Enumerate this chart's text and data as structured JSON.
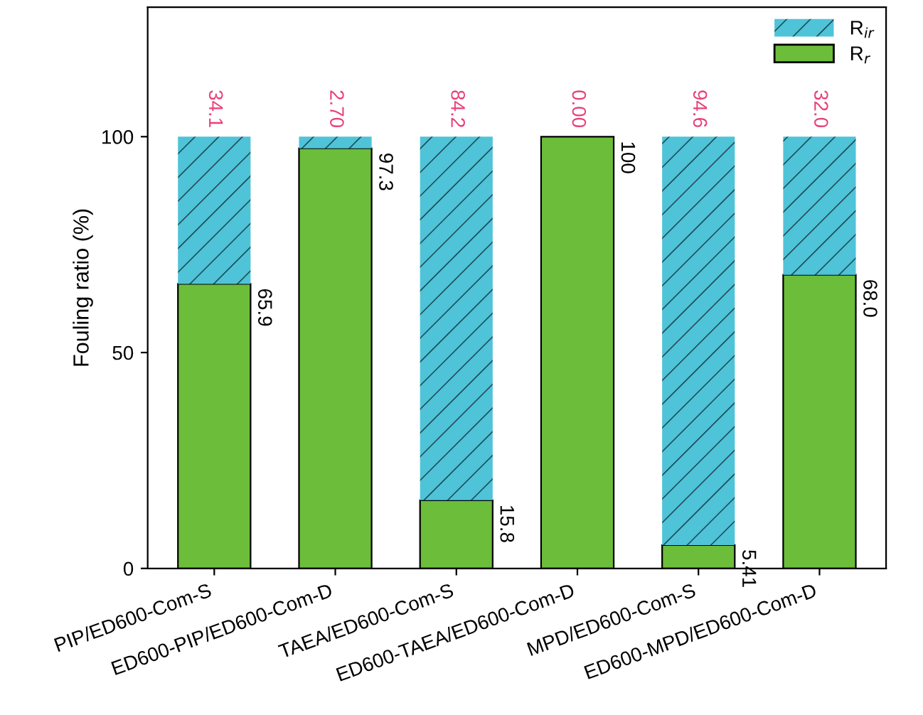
{
  "chart_data": {
    "type": "bar",
    "stacked": true,
    "ylabel": "Fouling ratio (%)",
    "categories": [
      "PIP/ED600-Com-S",
      "ED600-PIP/ED600-Com-D",
      "TAEA/ED600-Com-S",
      "ED600-TAEA/ED600-Com-D",
      "MPD/ED600-Com-S",
      "ED600-MPD/ED600-Com-D"
    ],
    "series": [
      {
        "name": "R$_{r}$",
        "color": "#6cbd3a",
        "values": [
          65.9,
          97.3,
          15.8,
          100,
          5.41,
          68.0
        ],
        "value_labels": [
          "65.9",
          "97.3",
          "15.8",
          "100",
          "5.41",
          "68.0"
        ]
      },
      {
        "name": "R$_{ir}$",
        "color": "#4fc3d8",
        "values": [
          34.1,
          2.7,
          84.2,
          0.0,
          94.6,
          32.0
        ],
        "value_labels": [
          "34.1",
          "2.70",
          "84.2",
          "0.00",
          "94.6",
          "32.0"
        ]
      }
    ],
    "ylim": [
      0,
      130
    ],
    "yticks": [
      0,
      50,
      100
    ],
    "legend": "top right",
    "grid": false
  }
}
